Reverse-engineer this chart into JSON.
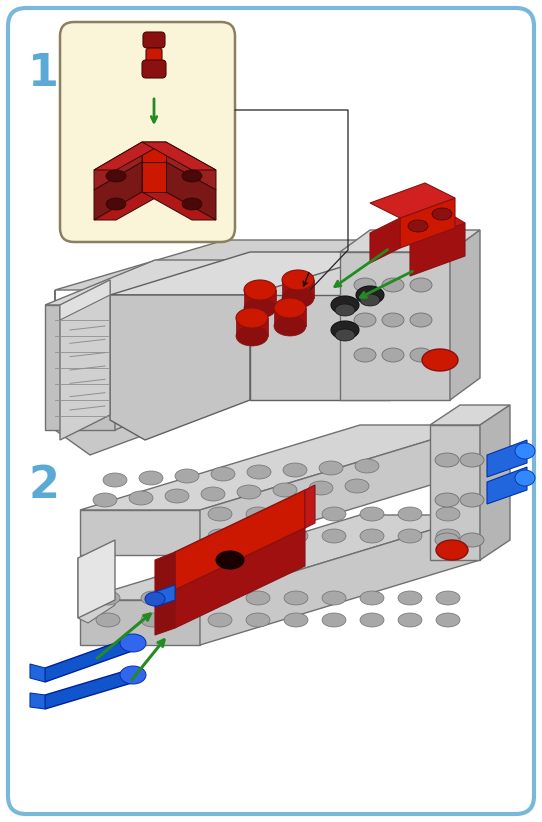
{
  "background_color": "#ffffff",
  "border_color": "#7ab8d9",
  "border_linewidth": 3,
  "fig_width": 5.42,
  "fig_height": 8.22,
  "dpi": 100,
  "step1_label": "1",
  "step2_label": "2",
  "label_color": "#5aaad5",
  "label_fontsize": 32,
  "label_fontweight": "bold",
  "inset_box_color": "#faf5d8",
  "inset_box_border": "#c0b870",
  "gray_light": "#c8c8c8",
  "gray_med": "#a8a8a8",
  "gray_dark": "#707070",
  "gray_shadow": "#909090",
  "red_dark": "#8b1010",
  "red_med": "#cc1800",
  "red_bright": "#dd2200",
  "black": "#111111",
  "blue_dark": "#1155cc",
  "blue_bright": "#2266dd",
  "green_arrow": "#228B22",
  "white": "#ffffff"
}
